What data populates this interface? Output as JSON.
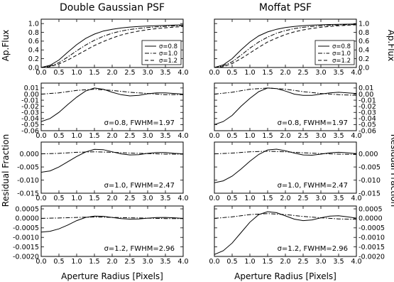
{
  "chart_data": [
    {
      "id": "p00",
      "type": "line",
      "column": "left",
      "row": 0,
      "title": "Double Gaussian PSF",
      "ylabel": "Ap.Flux",
      "xlabel": "",
      "xlim": [
        0,
        4
      ],
      "ylim": [
        0,
        1.1
      ],
      "grid": false,
      "xticks": [
        0,
        0.5,
        1,
        1.5,
        2,
        2.5,
        3,
        3.5,
        4
      ],
      "xtick_labels": [
        "0.0",
        "0.5",
        "1.0",
        "1.5",
        "2.0",
        "2.5",
        "3.0",
        "3.5",
        "4.0"
      ],
      "yticks": [
        0,
        0.2,
        0.4,
        0.6,
        0.8,
        1.0
      ],
      "ytick_labels": [
        "0.0",
        "0.2",
        "0.4",
        "0.6",
        "0.8",
        "1.0"
      ],
      "legend": {
        "placement": "lower-right",
        "entries": [
          "σ=0.8",
          "σ=1.0",
          "σ=1.2"
        ]
      },
      "series": [
        {
          "name": "σ=0.8",
          "style": "solid",
          "x": [
            0,
            0.25,
            0.5,
            0.75,
            1,
            1.25,
            1.5,
            1.75,
            2,
            2.25,
            2.5,
            2.75,
            3,
            3.25,
            3.5,
            3.75,
            4
          ],
          "y": [
            0,
            0.05,
            0.17,
            0.35,
            0.52,
            0.66,
            0.76,
            0.83,
            0.87,
            0.9,
            0.92,
            0.935,
            0.945,
            0.953,
            0.96,
            0.965,
            0.97
          ]
        },
        {
          "name": "σ=1.0",
          "style": "dashdot",
          "x": [
            0,
            0.25,
            0.5,
            0.75,
            1,
            1.25,
            1.5,
            1.75,
            2,
            2.25,
            2.5,
            2.75,
            3,
            3.25,
            3.5,
            3.75,
            4
          ],
          "y": [
            0,
            0.03,
            0.11,
            0.24,
            0.38,
            0.51,
            0.62,
            0.71,
            0.78,
            0.83,
            0.865,
            0.89,
            0.91,
            0.925,
            0.937,
            0.947,
            0.955
          ]
        },
        {
          "name": "σ=1.2",
          "style": "dashed",
          "x": [
            0,
            0.25,
            0.5,
            0.75,
            1,
            1.25,
            1.5,
            1.75,
            2,
            2.25,
            2.5,
            2.75,
            3,
            3.25,
            3.5,
            3.75,
            4
          ],
          "y": [
            0,
            0.02,
            0.08,
            0.17,
            0.28,
            0.39,
            0.5,
            0.59,
            0.67,
            0.74,
            0.79,
            0.83,
            0.86,
            0.885,
            0.905,
            0.92,
            0.932
          ]
        }
      ]
    },
    {
      "id": "p01",
      "type": "line",
      "column": "right",
      "row": 0,
      "title": "Moffat PSF",
      "ylabel": "Ap.Flux",
      "xlabel": "",
      "xlim": [
        0,
        4
      ],
      "ylim": [
        0,
        1.1
      ],
      "grid": false,
      "xticks": [
        0,
        0.5,
        1,
        1.5,
        2,
        2.5,
        3,
        3.5,
        4
      ],
      "xtick_labels": [
        "0.0",
        "0.5",
        "1.0",
        "1.5",
        "2.0",
        "2.5",
        "3.0",
        "3.5",
        "4.0"
      ],
      "yticks": [
        0,
        0.2,
        0.4,
        0.6,
        0.8,
        1.0
      ],
      "ytick_labels": [
        "0.0",
        "0.2",
        "0.4",
        "0.6",
        "0.8",
        "1.0"
      ],
      "legend": {
        "placement": "lower-right",
        "entries": [
          "σ=0.8",
          "σ=1.0",
          "σ=1.2"
        ]
      },
      "series": [
        {
          "name": "σ=0.8",
          "style": "solid",
          "x": [
            0,
            0.25,
            0.5,
            0.75,
            1,
            1.25,
            1.5,
            1.75,
            2,
            2.25,
            2.5,
            2.75,
            3,
            3.25,
            3.5,
            3.75,
            4
          ],
          "y": [
            0,
            0.06,
            0.2,
            0.4,
            0.58,
            0.72,
            0.81,
            0.87,
            0.91,
            0.935,
            0.952,
            0.964,
            0.972,
            0.978,
            0.983,
            0.987,
            0.99
          ]
        },
        {
          "name": "σ=1.0",
          "style": "dashdot",
          "x": [
            0,
            0.25,
            0.5,
            0.75,
            1,
            1.25,
            1.5,
            1.75,
            2,
            2.25,
            2.5,
            2.75,
            3,
            3.25,
            3.5,
            3.75,
            4
          ],
          "y": [
            0,
            0.04,
            0.13,
            0.28,
            0.44,
            0.58,
            0.69,
            0.78,
            0.84,
            0.885,
            0.915,
            0.935,
            0.95,
            0.96,
            0.968,
            0.975,
            0.98
          ]
        },
        {
          "name": "σ=1.2",
          "style": "dashed",
          "x": [
            0,
            0.25,
            0.5,
            0.75,
            1,
            1.25,
            1.5,
            1.75,
            2,
            2.25,
            2.5,
            2.75,
            3,
            3.25,
            3.5,
            3.75,
            4
          ],
          "y": [
            0,
            0.02,
            0.09,
            0.2,
            0.33,
            0.46,
            0.58,
            0.67,
            0.75,
            0.81,
            0.855,
            0.89,
            0.915,
            0.935,
            0.95,
            0.962,
            0.97
          ]
        }
      ]
    },
    {
      "id": "p10",
      "type": "line",
      "column": "left",
      "row": 1,
      "xlim": [
        0,
        4
      ],
      "ylim": [
        -0.06,
        0.018
      ],
      "xticks": [
        0,
        0.5,
        1,
        1.5,
        2,
        2.5,
        3,
        3.5,
        4
      ],
      "xtick_labels": [
        "0.0",
        "0.5",
        "1.0",
        "1.5",
        "2.0",
        "2.5",
        "3.0",
        "3.5",
        "4.0"
      ],
      "yticks": [
        -0.06,
        -0.05,
        -0.04,
        -0.03,
        -0.02,
        -0.01,
        0,
        0.01
      ],
      "ytick_labels": [
        "-0.06",
        "-0.05",
        "-0.04",
        "-0.03",
        "-0.02",
        "-0.01",
        "0.00",
        "0.01"
      ],
      "annotation": "σ=0.8, FWHM=1.97",
      "series": [
        {
          "style": "solid",
          "x": [
            0,
            0.25,
            0.5,
            0.75,
            1,
            1.25,
            1.5,
            1.75,
            2,
            2.25,
            2.5,
            2.75,
            3,
            3.25,
            3.5,
            3.75,
            4
          ],
          "y": [
            -0.045,
            -0.04,
            -0.03,
            -0.017,
            -0.005,
            0.005,
            0.01,
            0.008,
            0.003,
            -0.001,
            -0.003,
            -0.002,
            0.0005,
            0.002,
            0.002,
            0.001,
            0
          ]
        },
        {
          "style": "dashdot",
          "x": [
            0,
            0.5,
            1,
            1.5,
            2,
            2.5,
            3,
            3.5,
            4
          ],
          "y": [
            0,
            0.002,
            0.006,
            0.008,
            0.006,
            0.003,
            0.001,
            -0.001,
            -0.001
          ]
        }
      ]
    },
    {
      "id": "p11",
      "type": "line",
      "column": "right",
      "row": 1,
      "xlim": [
        0,
        4
      ],
      "ylim": [
        -0.06,
        0.018
      ],
      "xticks": [
        0,
        0.5,
        1,
        1.5,
        2,
        2.5,
        3,
        3.5,
        4
      ],
      "xtick_labels": [
        "0.0",
        "0.5",
        "1.0",
        "1.5",
        "2.0",
        "2.5",
        "3.0",
        "3.5",
        "4.0"
      ],
      "yticks": [
        -0.06,
        -0.05,
        -0.04,
        -0.03,
        -0.02,
        -0.01,
        0,
        0.01
      ],
      "ytick_labels": [
        "-0.06",
        "-0.05",
        "-0.04",
        "-0.03",
        "-0.02",
        "-0.01",
        "0.00",
        "0.01"
      ],
      "annotation": "σ=0.8, FWHM=1.97",
      "series": [
        {
          "style": "solid",
          "x": [
            0,
            0.25,
            0.5,
            0.75,
            1,
            1.25,
            1.5,
            1.75,
            2,
            2.25,
            2.5,
            2.75,
            3,
            3.25,
            3.5,
            3.75,
            4
          ],
          "y": [
            -0.05,
            -0.045,
            -0.035,
            -0.02,
            -0.007,
            0.004,
            0.01,
            0.009,
            0.005,
            0,
            -0.002,
            -0.002,
            0,
            0.002,
            0.003,
            0.002,
            0.001
          ]
        },
        {
          "style": "dashdot",
          "x": [
            0,
            0.5,
            1,
            1.5,
            2,
            2.5,
            3,
            3.5,
            4
          ],
          "y": [
            0,
            0.003,
            0.008,
            0.01,
            0.008,
            0.004,
            0.001,
            -0.001,
            -0.002
          ]
        }
      ]
    },
    {
      "id": "p20",
      "type": "line",
      "column": "left",
      "row": 2,
      "xlim": [
        0,
        4
      ],
      "ylim": [
        -0.015,
        0.0045
      ],
      "xticks": [
        0,
        0.5,
        1,
        1.5,
        2,
        2.5,
        3,
        3.5,
        4
      ],
      "xtick_labels": [
        "0.0",
        "0.5",
        "1.0",
        "1.5",
        "2.0",
        "2.5",
        "3.0",
        "3.5",
        "4.0"
      ],
      "yticks": [
        -0.015,
        -0.01,
        -0.005,
        0
      ],
      "ytick_labels": [
        "-0.015",
        "-0.010",
        "-0.005",
        "0.000"
      ],
      "annotation": "σ=1.0, FWHM=2.47",
      "series": [
        {
          "style": "solid",
          "x": [
            0,
            0.25,
            0.5,
            0.75,
            1,
            1.25,
            1.5,
            1.75,
            2,
            2.25,
            2.5,
            2.75,
            3,
            3.25,
            3.5,
            3.75,
            4
          ],
          "y": [
            -0.007,
            -0.0065,
            -0.005,
            -0.003,
            -0.001,
            0.0007,
            0.0017,
            0.0016,
            0.0008,
            0,
            -0.0004,
            -0.0003,
            0.0002,
            0.0005,
            0.0005,
            0.0002,
            0
          ]
        },
        {
          "style": "dashdot",
          "x": [
            0,
            0.5,
            1,
            1.5,
            2,
            2.5,
            3,
            3.5,
            4
          ],
          "y": [
            0,
            0.0002,
            0.0006,
            0.0008,
            0.0006,
            0.0003,
            0.0001,
            -0.0001,
            -0.0001
          ]
        }
      ]
    },
    {
      "id": "p21",
      "type": "line",
      "column": "right",
      "row": 2,
      "xlim": [
        0,
        4
      ],
      "ylim": [
        -0.015,
        0.0045
      ],
      "xticks": [
        0,
        0.5,
        1,
        1.5,
        2,
        2.5,
        3,
        3.5,
        4
      ],
      "xtick_labels": [
        "0.0",
        "0.5",
        "1.0",
        "1.5",
        "2.0",
        "2.5",
        "3.0",
        "3.5",
        "4.0"
      ],
      "yticks": [
        -0.015,
        -0.01,
        -0.005,
        0
      ],
      "ytick_labels": [
        "-0.015",
        "-0.010",
        "-0.005",
        "0.000"
      ],
      "annotation": "σ=1.0, FWHM=2.47",
      "series": [
        {
          "style": "solid",
          "x": [
            0,
            0.25,
            0.5,
            0.75,
            1,
            1.25,
            1.5,
            1.75,
            2,
            2.25,
            2.5,
            2.75,
            3,
            3.25,
            3.5,
            3.75,
            4
          ],
          "y": [
            -0.011,
            -0.0103,
            -0.0085,
            -0.0058,
            -0.0028,
            -0.0002,
            0.0015,
            0.0018,
            0.0012,
            0.0003,
            -0.0004,
            -0.0005,
            -0.0001,
            0.0004,
            0.0006,
            0.0004,
            0.0001
          ]
        },
        {
          "style": "dashdot",
          "x": [
            0,
            0.5,
            1,
            1.5,
            2,
            2.5,
            3,
            3.5,
            4
          ],
          "y": [
            0,
            0.0003,
            0.0008,
            0.001,
            0.0008,
            0.0004,
            0.0001,
            -0.0001,
            -0.0002
          ]
        }
      ]
    },
    {
      "id": "p30",
      "type": "line",
      "column": "left",
      "row": 3,
      "xlabel": "Aperture Radius [Pixels]",
      "xlim": [
        0,
        4
      ],
      "ylim": [
        -0.002,
        0.00065
      ],
      "xticks": [
        0,
        0.5,
        1,
        1.5,
        2,
        2.5,
        3,
        3.5,
        4
      ],
      "xtick_labels": [
        "0.0",
        "0.5",
        "1.0",
        "1.5",
        "2.0",
        "2.5",
        "3.0",
        "3.5",
        "4.0"
      ],
      "yticks": [
        -0.002,
        -0.0015,
        -0.001,
        -0.0005,
        0,
        0.0005
      ],
      "ytick_labels": [
        "-0.0020",
        "-0.0015",
        "-0.0010",
        "-0.0005",
        "0.0000",
        "0.0005"
      ],
      "annotation": "σ=1.2, FWHM=2.96",
      "series": [
        {
          "style": "solid",
          "x": [
            0,
            0.25,
            0.5,
            0.75,
            1,
            1.25,
            1.5,
            1.75,
            2,
            2.25,
            2.5,
            2.75,
            3,
            3.25,
            3.5,
            3.75,
            4
          ],
          "y": [
            -0.00072,
            -0.00068,
            -0.00055,
            -0.00035,
            -0.00012,
            5e-05,
            0.00012,
            0.00011,
            5e-05,
            -1e-05,
            -4e-05,
            -3e-05,
            1e-05,
            4e-05,
            5e-05,
            3e-05,
            0
          ]
        },
        {
          "style": "dashdot",
          "x": [
            0,
            0.5,
            1,
            1.5,
            2,
            2.5,
            3,
            3.5,
            4
          ],
          "y": [
            0,
            2e-05,
            5e-05,
            7e-05,
            5e-05,
            3e-05,
            1e-05,
            -1e-05,
            -1e-05
          ]
        }
      ]
    },
    {
      "id": "p31",
      "type": "line",
      "column": "right",
      "row": 3,
      "xlabel": "Aperture Radius [Pixels]",
      "xlim": [
        0,
        4
      ],
      "ylim": [
        -0.002,
        0.00065
      ],
      "xticks": [
        0,
        0.5,
        1,
        1.5,
        2,
        2.5,
        3,
        3.5,
        4
      ],
      "xtick_labels": [
        "0.0",
        "0.5",
        "1.0",
        "1.5",
        "2.0",
        "2.5",
        "3.0",
        "3.5",
        "4.0"
      ],
      "yticks": [
        -0.002,
        -0.0015,
        -0.001,
        -0.0005,
        0,
        0.0005
      ],
      "ytick_labels": [
        "-0.0020",
        "-0.0015",
        "-0.0010",
        "-0.0005",
        "0.0000",
        "0.0005"
      ],
      "annotation": "σ=1.2, FWHM=2.96",
      "series": [
        {
          "style": "solid",
          "x": [
            0,
            0.25,
            0.5,
            0.75,
            1,
            1.25,
            1.5,
            1.75,
            2,
            2.25,
            2.5,
            2.75,
            3,
            3.25,
            3.5,
            3.75,
            4
          ],
          "y": [
            -0.0019,
            -0.0017,
            -0.0013,
            -0.00075,
            -0.0002,
            0.0002,
            0.00035,
            0.0003,
            0.00013,
            -4e-05,
            -0.00012,
            -8e-05,
            3e-05,
            0.00012,
            0.00014,
            8e-05,
            1e-05
          ]
        },
        {
          "style": "dashdot",
          "x": [
            0,
            0.5,
            1,
            1.5,
            2,
            2.5,
            3,
            3.5,
            4
          ],
          "y": [
            0,
            8e-05,
            0.0002,
            0.00025,
            0.0002,
            0.0001,
            3e-05,
            -3e-05,
            -5e-05
          ]
        }
      ]
    }
  ],
  "figure": {
    "ylabel_residual": "Residual Fraction",
    "xlabel_shared": "Aperture Radius [Pixels]"
  }
}
